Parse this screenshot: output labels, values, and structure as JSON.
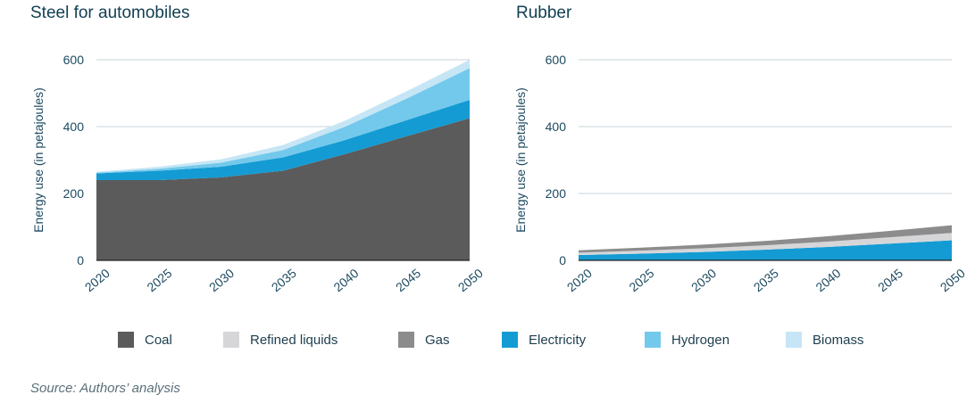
{
  "colors": {
    "coal": "#5b5b5b",
    "refined_liquids": "#d6d6d9",
    "gas": "#8c8c8c",
    "electricity": "#149bd3",
    "hydrogen": "#73c9ec",
    "biomass": "#c6e6f5"
  },
  "legend": [
    {
      "key": "coal",
      "label": "Coal"
    },
    {
      "key": "refined_liquids",
      "label": "Refined liquids"
    },
    {
      "key": "gas",
      "label": "Gas"
    },
    {
      "key": "electricity",
      "label": "Electricity"
    },
    {
      "key": "hydrogen",
      "label": "Hydrogen"
    },
    {
      "key": "biomass",
      "label": "Biomass"
    }
  ],
  "source": "Source: Authors’ analysis",
  "chart_data": [
    {
      "type": "area",
      "stacked": true,
      "title": "Steel for automobiles",
      "ylabel": "Energy use (in petajoules)",
      "xlabel": "",
      "x": [
        2020,
        2025,
        2030,
        2035,
        2040,
        2045,
        2050
      ],
      "ylim": [
        0,
        600
      ],
      "yticks": [
        0,
        200,
        400,
        600
      ],
      "grid": true,
      "series": [
        {
          "key": "coal",
          "name": "Coal",
          "values": [
            240,
            240,
            248,
            268,
            318,
            372,
            425
          ]
        },
        {
          "key": "electricity",
          "name": "Electricity",
          "values": [
            20,
            28,
            32,
            40,
            42,
            48,
            55
          ]
        },
        {
          "key": "hydrogen",
          "name": "Hydrogen",
          "values": [
            2,
            6,
            12,
            22,
            40,
            65,
            95
          ]
        },
        {
          "key": "biomass",
          "name": "Biomass",
          "values": [
            3,
            6,
            10,
            15,
            18,
            22,
            25
          ]
        }
      ]
    },
    {
      "type": "area",
      "stacked": true,
      "title": "Rubber",
      "ylabel": "Energy use (in petajoules)",
      "xlabel": "",
      "x": [
        2020,
        2025,
        2030,
        2035,
        2040,
        2045,
        2050
      ],
      "ylim": [
        0,
        600
      ],
      "yticks": [
        0,
        200,
        400,
        600
      ],
      "grid": true,
      "series": [
        {
          "key": "electricity",
          "name": "Electricity",
          "values": [
            16,
            20,
            25,
            32,
            40,
            50,
            60
          ]
        },
        {
          "key": "refined_liquids",
          "name": "Refined liquids",
          "values": [
            7,
            9,
            11,
            13,
            16,
            19,
            22
          ]
        },
        {
          "key": "gas",
          "name": "Gas",
          "values": [
            7,
            9,
            11,
            13,
            16,
            19,
            23
          ]
        }
      ]
    }
  ]
}
